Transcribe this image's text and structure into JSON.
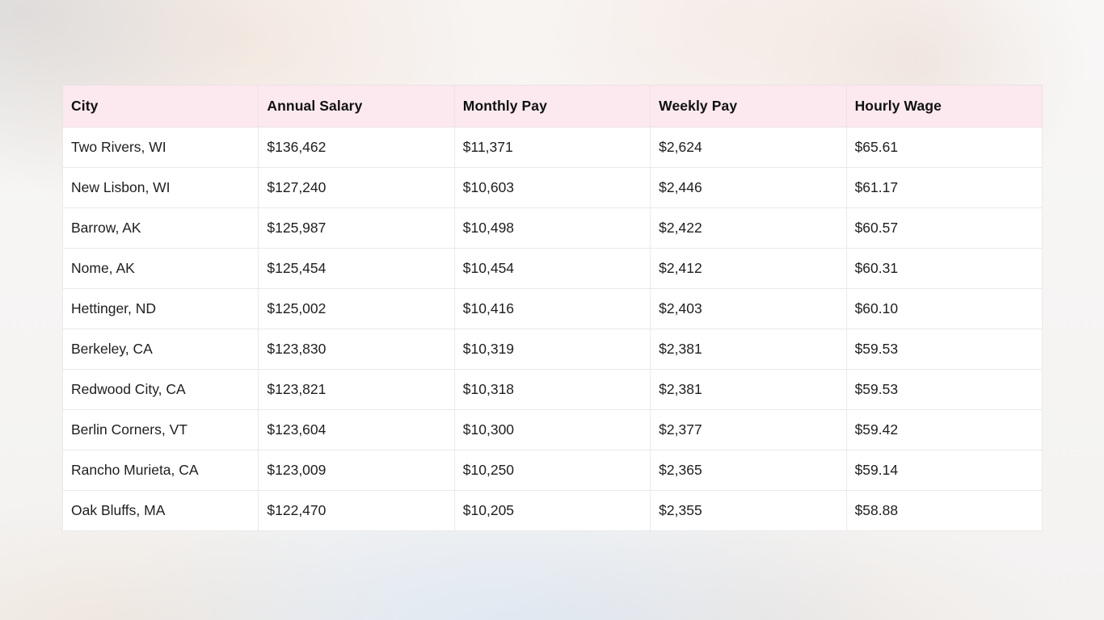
{
  "colors": {
    "header_bg": "#fce9f0",
    "row_bg": "#ffffff",
    "border": "#e9e9e9",
    "text": "#1e1e1e"
  },
  "chart_data": {
    "type": "table",
    "columns": [
      "City",
      "Annual Salary",
      "Monthly Pay",
      "Weekly Pay",
      "Hourly Wage"
    ],
    "rows": [
      [
        "Two Rivers, WI",
        "$136,462",
        "$11,371",
        "$2,624",
        "$65.61"
      ],
      [
        "New Lisbon, WI",
        "$127,240",
        "$10,603",
        "$2,446",
        "$61.17"
      ],
      [
        "Barrow, AK",
        "$125,987",
        "$10,498",
        "$2,422",
        "$60.57"
      ],
      [
        "Nome, AK",
        "$125,454",
        "$10,454",
        "$2,412",
        "$60.31"
      ],
      [
        "Hettinger, ND",
        "$125,002",
        "$10,416",
        "$2,403",
        "$60.10"
      ],
      [
        "Berkeley, CA",
        "$123,830",
        "$10,319",
        "$2,381",
        "$59.53"
      ],
      [
        "Redwood City, CA",
        "$123,821",
        "$10,318",
        "$2,381",
        "$59.53"
      ],
      [
        "Berlin Corners, VT",
        "$123,604",
        "$10,300",
        "$2,377",
        "$59.42"
      ],
      [
        "Rancho Murieta, CA",
        "$123,009",
        "$10,250",
        "$2,365",
        "$59.14"
      ],
      [
        "Oak Bluffs, MA",
        "$122,470",
        "$10,205",
        "$2,355",
        "$58.88"
      ]
    ]
  }
}
